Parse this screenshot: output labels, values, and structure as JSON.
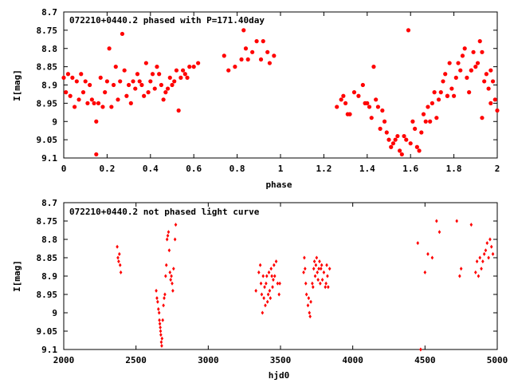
{
  "chart_data": [
    {
      "type": "scatter",
      "title": "072210+0440.2 phased with P=171.40day",
      "xlabel": "phase",
      "ylabel": "I[mag]",
      "xlim": [
        0,
        2
      ],
      "ylim": [
        8.7,
        9.1
      ],
      "y_inverted": true,
      "grid": false,
      "color": "#ff0000",
      "marker": "filled-circle",
      "xticks": [
        "0",
        "0.2",
        "0.4",
        "0.6",
        "0.8",
        "1",
        "1.2",
        "1.4",
        "1.6",
        "1.8",
        "2"
      ],
      "yticks": [
        "8.7",
        "8.75",
        "8.8",
        "8.85",
        "8.9",
        "8.95",
        "9",
        "9.05",
        "9.1"
      ],
      "points": [
        [
          0.0,
          8.88
        ],
        [
          0.01,
          8.92
        ],
        [
          0.02,
          8.87
        ],
        [
          0.03,
          8.93
        ],
        [
          0.04,
          8.88
        ],
        [
          0.05,
          8.96
        ],
        [
          0.06,
          8.89
        ],
        [
          0.07,
          8.94
        ],
        [
          0.08,
          8.87
        ],
        [
          0.09,
          8.92
        ],
        [
          0.1,
          8.89
        ],
        [
          0.11,
          8.95
        ],
        [
          0.12,
          8.9
        ],
        [
          0.13,
          8.94
        ],
        [
          0.14,
          8.95
        ],
        [
          0.15,
          9.0
        ],
        [
          0.16,
          8.95
        ],
        [
          0.17,
          8.88
        ],
        [
          0.18,
          8.96
        ],
        [
          0.19,
          8.92
        ],
        [
          0.2,
          8.89
        ],
        [
          0.21,
          8.8
        ],
        [
          0.22,
          8.96
        ],
        [
          0.23,
          8.9
        ],
        [
          0.24,
          8.85
        ],
        [
          0.25,
          8.94
        ],
        [
          0.26,
          8.89
        ],
        [
          0.27,
          8.76
        ],
        [
          0.28,
          8.86
        ],
        [
          0.29,
          8.93
        ],
        [
          0.3,
          8.9
        ],
        [
          0.31,
          8.95
        ],
        [
          0.32,
          8.89
        ],
        [
          0.33,
          8.91
        ],
        [
          0.34,
          8.87
        ],
        [
          0.35,
          8.89
        ],
        [
          0.36,
          8.9
        ],
        [
          0.37,
          8.93
        ],
        [
          0.38,
          8.84
        ],
        [
          0.39,
          8.92
        ],
        [
          0.4,
          8.89
        ],
        [
          0.41,
          8.87
        ],
        [
          0.42,
          8.91
        ],
        [
          0.43,
          8.85
        ],
        [
          0.44,
          8.87
        ],
        [
          0.45,
          8.9
        ],
        [
          0.46,
          8.94
        ],
        [
          0.47,
          8.92
        ],
        [
          0.48,
          8.91
        ],
        [
          0.49,
          8.88
        ],
        [
          0.5,
          8.9
        ],
        [
          0.51,
          8.89
        ],
        [
          0.52,
          8.86
        ],
        [
          0.53,
          8.97
        ],
        [
          0.54,
          8.88
        ],
        [
          0.55,
          8.86
        ],
        [
          0.56,
          8.87
        ],
        [
          0.57,
          8.88
        ],
        [
          0.58,
          8.85
        ],
        [
          0.6,
          8.85
        ],
        [
          0.62,
          8.84
        ],
        [
          0.74,
          8.82
        ],
        [
          0.76,
          8.86
        ],
        [
          0.79,
          8.85
        ],
        [
          0.82,
          8.83
        ],
        [
          0.83,
          8.75
        ],
        [
          0.84,
          8.8
        ],
        [
          0.85,
          8.83
        ],
        [
          0.87,
          8.81
        ],
        [
          0.89,
          8.78
        ],
        [
          0.91,
          8.83
        ],
        [
          0.94,
          8.81
        ],
        [
          0.95,
          8.84
        ],
        [
          0.97,
          8.82
        ],
        [
          1.26,
          8.96
        ],
        [
          1.28,
          8.94
        ],
        [
          1.3,
          8.95
        ],
        [
          1.31,
          8.98
        ],
        [
          1.32,
          8.98
        ],
        [
          1.34,
          8.92
        ],
        [
          1.36,
          8.93
        ],
        [
          1.38,
          8.9
        ],
        [
          1.39,
          8.95
        ],
        [
          1.4,
          8.95
        ],
        [
          1.41,
          8.96
        ],
        [
          1.42,
          8.99
        ],
        [
          1.43,
          8.85
        ],
        [
          1.44,
          8.94
        ],
        [
          1.45,
          8.96
        ],
        [
          1.46,
          9.02
        ],
        [
          1.47,
          8.97
        ],
        [
          1.48,
          9.0
        ],
        [
          1.49,
          9.03
        ],
        [
          1.5,
          9.05
        ],
        [
          1.51,
          9.07
        ],
        [
          1.52,
          9.06
        ],
        [
          1.53,
          9.05
        ],
        [
          1.54,
          9.04
        ],
        [
          1.55,
          9.08
        ],
        [
          1.56,
          9.09
        ],
        [
          1.57,
          9.04
        ],
        [
          1.58,
          9.05
        ],
        [
          1.59,
          8.75
        ],
        [
          1.6,
          9.06
        ],
        [
          1.61,
          9.0
        ],
        [
          1.62,
          9.02
        ],
        [
          1.63,
          9.07
        ],
        [
          1.64,
          9.08
        ],
        [
          1.65,
          9.03
        ],
        [
          1.66,
          8.98
        ],
        [
          1.67,
          9.0
        ],
        [
          1.68,
          8.96
        ],
        [
          1.69,
          9.0
        ],
        [
          1.7,
          8.95
        ],
        [
          1.71,
          8.92
        ],
        [
          1.72,
          8.99
        ],
        [
          1.73,
          8.94
        ],
        [
          1.74,
          8.92
        ],
        [
          1.75,
          8.89
        ],
        [
          1.76,
          8.87
        ],
        [
          1.77,
          8.93
        ],
        [
          1.78,
          8.84
        ],
        [
          1.79,
          8.91
        ],
        [
          1.8,
          8.93
        ],
        [
          1.81,
          8.88
        ],
        [
          1.82,
          8.84
        ],
        [
          1.83,
          8.86
        ],
        [
          1.84,
          8.82
        ],
        [
          1.85,
          8.8
        ],
        [
          1.86,
          8.88
        ],
        [
          1.87,
          8.92
        ],
        [
          1.88,
          8.86
        ],
        [
          1.89,
          8.81
        ],
        [
          1.9,
          8.85
        ],
        [
          1.91,
          8.84
        ],
        [
          1.92,
          8.78
        ],
        [
          1.93,
          8.81
        ],
        [
          1.94,
          8.89
        ],
        [
          1.95,
          8.87
        ],
        [
          1.96,
          8.91
        ],
        [
          1.97,
          8.86
        ],
        [
          1.98,
          8.89
        ],
        [
          1.99,
          8.94
        ],
        [
          2.0,
          8.97
        ],
        [
          1.93,
          8.99
        ],
        [
          1.97,
          8.95
        ],
        [
          1.88,
          8.86
        ],
        [
          1.77,
          8.93
        ],
        [
          0.15,
          9.09
        ],
        [
          0.92,
          8.78
        ],
        [
          1.29,
          8.93
        ]
      ]
    },
    {
      "type": "scatter",
      "title": "072210+0440.2 not phased light curve",
      "xlabel": "hjd0",
      "ylabel": "I[mag]",
      "xlim": [
        2000,
        5000
      ],
      "ylim": [
        8.7,
        9.1
      ],
      "y_inverted": true,
      "grid": false,
      "color": "#ff0000",
      "marker": "small-diamond",
      "xticks": [
        "2000",
        "2500",
        "3000",
        "3500",
        "4000",
        "4500",
        "5000"
      ],
      "yticks": [
        "8.7",
        "8.75",
        "8.8",
        "8.85",
        "8.9",
        "8.95",
        "9",
        "9.05",
        "9.1"
      ],
      "points": [
        [
          2370,
          8.82
        ],
        [
          2375,
          8.85
        ],
        [
          2380,
          8.86
        ],
        [
          2385,
          8.84
        ],
        [
          2390,
          8.87
        ],
        [
          2395,
          8.89
        ],
        [
          2640,
          8.94
        ],
        [
          2645,
          8.96
        ],
        [
          2650,
          8.97
        ],
        [
          2655,
          8.99
        ],
        [
          2660,
          9.0
        ],
        [
          2662,
          9.02
        ],
        [
          2665,
          9.03
        ],
        [
          2668,
          9.04
        ],
        [
          2670,
          9.05
        ],
        [
          2672,
          9.06
        ],
        [
          2675,
          9.08
        ],
        [
          2678,
          9.09
        ],
        [
          2680,
          9.07
        ],
        [
          2685,
          9.02
        ],
        [
          2690,
          8.98
        ],
        [
          2695,
          8.96
        ],
        [
          2700,
          8.95
        ],
        [
          2705,
          8.9
        ],
        [
          2710,
          8.87
        ],
        [
          2715,
          8.8
        ],
        [
          2720,
          8.79
        ],
        [
          2725,
          8.78
        ],
        [
          2730,
          8.83
        ],
        [
          2735,
          8.89
        ],
        [
          2740,
          8.91
        ],
        [
          2745,
          8.9
        ],
        [
          2750,
          8.92
        ],
        [
          2755,
          8.94
        ],
        [
          2760,
          8.88
        ],
        [
          2770,
          8.8
        ],
        [
          2775,
          8.76
        ],
        [
          3330,
          8.94
        ],
        [
          3350,
          8.89
        ],
        [
          3360,
          8.87
        ],
        [
          3365,
          8.92
        ],
        [
          3370,
          8.95
        ],
        [
          3375,
          9.0
        ],
        [
          3380,
          8.9
        ],
        [
          3385,
          8.96
        ],
        [
          3390,
          8.93
        ],
        [
          3395,
          8.98
        ],
        [
          3400,
          8.92
        ],
        [
          3405,
          8.9
        ],
        [
          3410,
          8.97
        ],
        [
          3415,
          8.95
        ],
        [
          3420,
          8.89
        ],
        [
          3425,
          8.94
        ],
        [
          3430,
          8.96
        ],
        [
          3435,
          8.88
        ],
        [
          3440,
          8.9
        ],
        [
          3445,
          8.93
        ],
        [
          3450,
          8.91
        ],
        [
          3455,
          8.87
        ],
        [
          3460,
          8.9
        ],
        [
          3470,
          8.86
        ],
        [
          3480,
          8.92
        ],
        [
          3490,
          8.95
        ],
        [
          3495,
          8.92
        ],
        [
          3660,
          8.89
        ],
        [
          3665,
          8.85
        ],
        [
          3670,
          8.88
        ],
        [
          3675,
          8.92
        ],
        [
          3680,
          8.95
        ],
        [
          3690,
          8.98
        ],
        [
          3695,
          8.96
        ],
        [
          3700,
          9.0
        ],
        [
          3705,
          9.01
        ],
        [
          3710,
          8.97
        ],
        [
          3720,
          8.92
        ],
        [
          3725,
          8.93
        ],
        [
          3730,
          8.88
        ],
        [
          3735,
          8.86
        ],
        [
          3740,
          8.9
        ],
        [
          3745,
          8.87
        ],
        [
          3750,
          8.85
        ],
        [
          3755,
          8.89
        ],
        [
          3760,
          8.91
        ],
        [
          3765,
          8.88
        ],
        [
          3770,
          8.86
        ],
        [
          3775,
          8.92
        ],
        [
          3780,
          8.88
        ],
        [
          3785,
          8.87
        ],
        [
          3790,
          8.91
        ],
        [
          3800,
          8.89
        ],
        [
          3810,
          8.93
        ],
        [
          3815,
          8.92
        ],
        [
          3820,
          8.87
        ],
        [
          3825,
          8.9
        ],
        [
          3830,
          8.93
        ],
        [
          3840,
          8.88
        ],
        [
          4450,
          8.81
        ],
        [
          4470,
          9.1
        ],
        [
          4500,
          8.89
        ],
        [
          4520,
          8.84
        ],
        [
          4550,
          8.85
        ],
        [
          4580,
          8.75
        ],
        [
          4600,
          8.78
        ],
        [
          4720,
          8.75
        ],
        [
          4740,
          8.9
        ],
        [
          4750,
          8.88
        ],
        [
          4820,
          8.76
        ],
        [
          4850,
          8.89
        ],
        [
          4860,
          8.86
        ],
        [
          4870,
          8.9
        ],
        [
          4880,
          8.85
        ],
        [
          4890,
          8.88
        ],
        [
          4900,
          8.86
        ],
        [
          4910,
          8.84
        ],
        [
          4920,
          8.83
        ],
        [
          4930,
          8.81
        ],
        [
          4940,
          8.85
        ],
        [
          4950,
          8.8
        ],
        [
          4960,
          8.82
        ],
        [
          4970,
          8.84
        ]
      ]
    }
  ]
}
